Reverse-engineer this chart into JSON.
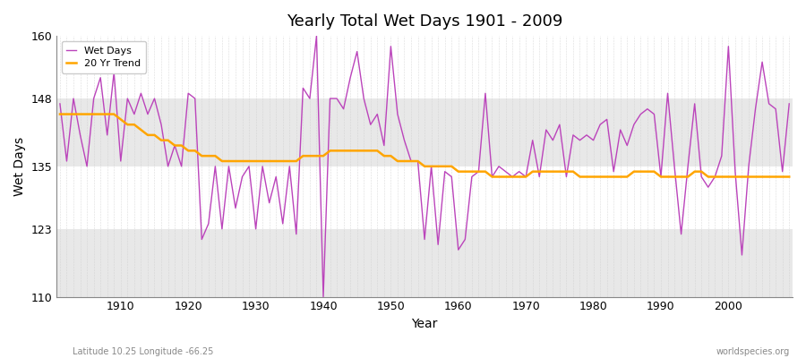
{
  "title": "Yearly Total Wet Days 1901 - 2009",
  "xlabel": "Year",
  "ylabel": "Wet Days",
  "footnote_left": "Latitude 10.25 Longitude -66.25",
  "footnote_right": "worldspecies.org",
  "legend_wet": "Wet Days",
  "legend_trend": "20 Yr Trend",
  "wet_color": "#BB44BB",
  "trend_color": "#FFA500",
  "background_color": "#FFFFFF",
  "plot_bg_color": "#FFFFFF",
  "band_color": "#E8E8E8",
  "ylim": [
    110,
    160
  ],
  "yticks": [
    110,
    123,
    135,
    148,
    160
  ],
  "years": [
    1901,
    1902,
    1903,
    1904,
    1905,
    1906,
    1907,
    1908,
    1909,
    1910,
    1911,
    1912,
    1913,
    1914,
    1915,
    1916,
    1917,
    1918,
    1919,
    1920,
    1921,
    1922,
    1923,
    1924,
    1925,
    1926,
    1927,
    1928,
    1929,
    1930,
    1931,
    1932,
    1933,
    1934,
    1935,
    1936,
    1937,
    1938,
    1939,
    1940,
    1941,
    1942,
    1943,
    1944,
    1945,
    1946,
    1947,
    1948,
    1949,
    1950,
    1951,
    1952,
    1953,
    1954,
    1955,
    1956,
    1957,
    1958,
    1959,
    1960,
    1961,
    1962,
    1963,
    1964,
    1965,
    1966,
    1967,
    1968,
    1969,
    1970,
    1971,
    1972,
    1973,
    1974,
    1975,
    1976,
    1977,
    1978,
    1979,
    1980,
    1981,
    1982,
    1983,
    1984,
    1985,
    1986,
    1987,
    1988,
    1989,
    1990,
    1991,
    1992,
    1993,
    1994,
    1995,
    1996,
    1997,
    1998,
    1999,
    2000,
    2001,
    2002,
    2003,
    2004,
    2005,
    2006,
    2007,
    2008,
    2009
  ],
  "wet_days": [
    147,
    136,
    148,
    141,
    135,
    148,
    152,
    141,
    153,
    136,
    148,
    145,
    149,
    145,
    148,
    143,
    135,
    139,
    135,
    149,
    148,
    121,
    124,
    135,
    123,
    135,
    127,
    133,
    135,
    123,
    135,
    128,
    133,
    124,
    135,
    122,
    150,
    148,
    160,
    110,
    148,
    148,
    146,
    152,
    157,
    148,
    143,
    145,
    139,
    158,
    145,
    140,
    136,
    136,
    121,
    135,
    120,
    134,
    133,
    119,
    121,
    133,
    134,
    149,
    133,
    135,
    134,
    133,
    134,
    133,
    140,
    133,
    142,
    140,
    143,
    133,
    141,
    140,
    141,
    140,
    143,
    144,
    134,
    142,
    139,
    143,
    145,
    146,
    145,
    133,
    149,
    135,
    122,
    135,
    147,
    133,
    131,
    133,
    137,
    158,
    134,
    118,
    135,
    146,
    155,
    147,
    146,
    134,
    147
  ],
  "trend_years": [
    1901,
    1902,
    1903,
    1904,
    1905,
    1906,
    1907,
    1908,
    1909,
    1910,
    1911,
    1912,
    1913,
    1914,
    1915,
    1916,
    1917,
    1918,
    1919,
    1920,
    1921,
    1922,
    1923,
    1924,
    1925,
    1926,
    1927,
    1928,
    1929,
    1930,
    1931,
    1932,
    1933,
    1934,
    1935,
    1936,
    1937,
    1938,
    1939,
    1940,
    1941,
    1942,
    1943,
    1944,
    1945,
    1946,
    1947,
    1948,
    1949,
    1950,
    1951,
    1952,
    1953,
    1954,
    1955,
    1956,
    1957,
    1958,
    1959,
    1960,
    1961,
    1962,
    1963,
    1964,
    1965,
    1966,
    1967,
    1968,
    1969,
    1970,
    1971,
    1972,
    1973,
    1974,
    1975,
    1976,
    1977,
    1978,
    1979,
    1980,
    1981,
    1982,
    1983,
    1984,
    1985,
    1986,
    1987,
    1988,
    1989,
    1990,
    1991,
    1992,
    1993,
    1994,
    1995,
    1996,
    1997,
    1998,
    1999,
    2000,
    2001,
    2002,
    2003,
    2004,
    2005,
    2006,
    2007,
    2008,
    2009
  ],
  "trend_vals": [
    145,
    145,
    145,
    145,
    145,
    145,
    145,
    145,
    145,
    144,
    143,
    143,
    142,
    141,
    141,
    140,
    140,
    139,
    139,
    138,
    138,
    137,
    137,
    137,
    136,
    136,
    136,
    136,
    136,
    136,
    136,
    136,
    136,
    136,
    136,
    136,
    137,
    137,
    137,
    137,
    138,
    138,
    138,
    138,
    138,
    138,
    138,
    138,
    137,
    137,
    136,
    136,
    136,
    136,
    135,
    135,
    135,
    135,
    135,
    134,
    134,
    134,
    134,
    134,
    133,
    133,
    133,
    133,
    133,
    133,
    134,
    134,
    134,
    134,
    134,
    134,
    134,
    133,
    133,
    133,
    133,
    133,
    133,
    133,
    133,
    134,
    134,
    134,
    134,
    133,
    133,
    133,
    133,
    133,
    134,
    134,
    133,
    133,
    133,
    133,
    133,
    133,
    133,
    133,
    133,
    133,
    133,
    133,
    133
  ]
}
